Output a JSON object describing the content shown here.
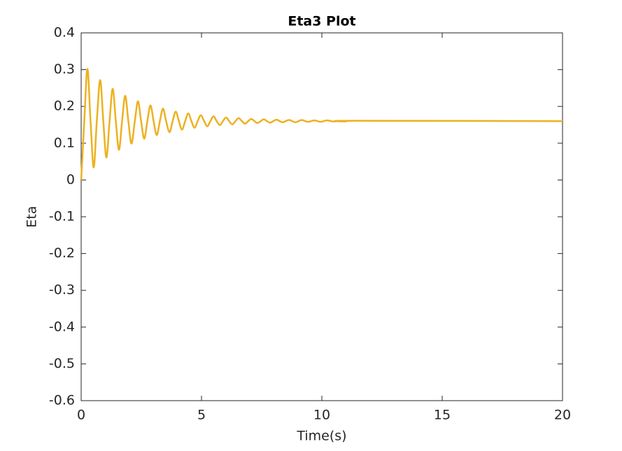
{
  "chart_data": {
    "type": "line",
    "title": "Eta3 Plot",
    "x_label": "Time(s)",
    "y_label": "Eta",
    "x": [
      0,
      0.13,
      0.26,
      0.39,
      0.52,
      0.65,
      0.79,
      0.92,
      1.05,
      1.18,
      1.31,
      1.44,
      1.57,
      1.7,
      1.83,
      1.96,
      2.09,
      2.23,
      2.36,
      2.49,
      2.62,
      2.75,
      2.88,
      3.01,
      3.14,
      3.27,
      3.4,
      3.53,
      3.67,
      3.8,
      3.93,
      4.06,
      4.19,
      4.32,
      4.45,
      4.58,
      4.71,
      4.84,
      4.97,
      5.11,
      5.24,
      5.37,
      5.5,
      5.63,
      5.76,
      5.89,
      6.02,
      6.15,
      6.28,
      6.41,
      6.54,
      6.68,
      6.81,
      6.94,
      7.07,
      7.2,
      7.33,
      7.46,
      7.59,
      7.72,
      7.85,
      7.98,
      8.12,
      8.25,
      8.38,
      8.64,
      8.9,
      9.16,
      9.42,
      9.69,
      9.95,
      10.21,
      10.47,
      10.73,
      11.0,
      11.26,
      20
    ],
    "series": [
      {
        "color": "#EDB120",
        "values": [
          0,
          0.16,
          0.302,
          0.16,
          0.034,
          0.16,
          0.272,
          0.16,
          0.061,
          0.16,
          0.248,
          0.16,
          0.082,
          0.16,
          0.229,
          0.16,
          0.099,
          0.16,
          0.214,
          0.16,
          0.112,
          0.16,
          0.203,
          0.16,
          0.122,
          0.16,
          0.194,
          0.16,
          0.13,
          0.16,
          0.186,
          0.16,
          0.137,
          0.16,
          0.181,
          0.16,
          0.142,
          0.16,
          0.176,
          0.16,
          0.146,
          0.16,
          0.173,
          0.16,
          0.149,
          0.16,
          0.17,
          0.16,
          0.151,
          0.16,
          0.168,
          0.16,
          0.153,
          0.16,
          0.166,
          0.16,
          0.155,
          0.16,
          0.165,
          0.16,
          0.156,
          0.16,
          0.164,
          0.16,
          0.157,
          0.163,
          0.157,
          0.163,
          0.158,
          0.162,
          0.158,
          0.162,
          0.159,
          0.161,
          0.159,
          0.161,
          0.16
        ]
      }
    ],
    "xlim": [
      0,
      20
    ],
    "xticks": [
      0,
      5,
      10,
      15,
      20
    ],
    "ylim": [
      -0.6,
      0.4
    ],
    "yticks": [
      -0.6,
      -0.5,
      -0.4,
      -0.3,
      -0.2,
      -0.1,
      0,
      0.1,
      0.2,
      0.3,
      0.4
    ],
    "grid": false
  }
}
